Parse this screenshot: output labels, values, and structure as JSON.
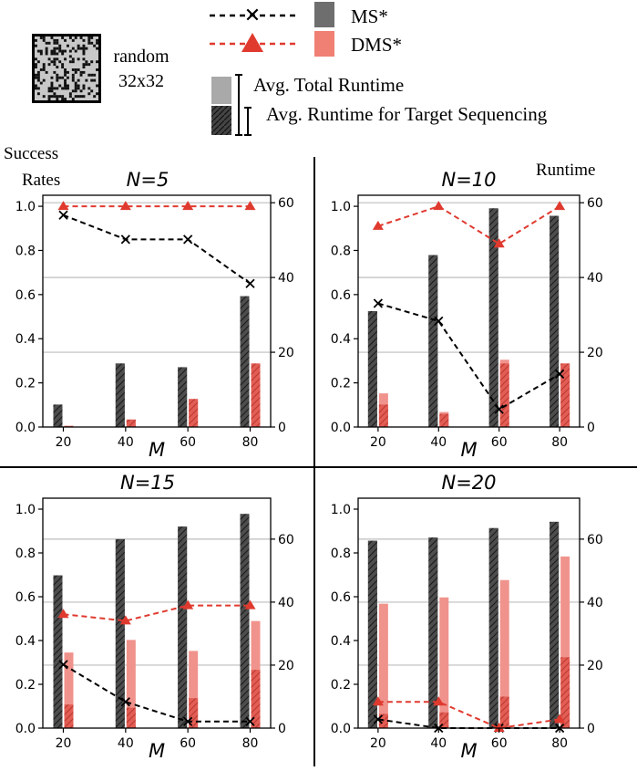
{
  "legend": {
    "map_label_line1": "random",
    "map_label_line2": "32x32",
    "ms_label": "MS*",
    "dms_label": "DMS*",
    "total_runtime_label": "Avg. Total Runtime",
    "target_seq_label": "Avg. Runtime for Target Sequencing"
  },
  "axis_text": {
    "left_title_line1": "Success",
    "left_title_line2": "Rates",
    "right_title": "Runtime",
    "x_label": "M"
  },
  "colors": {
    "ms_line": "#000000",
    "dms_line": "#e03a2f",
    "ms_bar": "#6e6e6e",
    "ms_bar_dark": "#4d4d4d",
    "dms_bar": "#f0938c",
    "dms_bar_dark": "#e35d54"
  },
  "chart_data": [
    {
      "type": "bar+line",
      "title": "N=5",
      "categories": [
        "20",
        "40",
        "60",
        "80"
      ],
      "y_left_ticks": [
        "0.0",
        "0.2",
        "0.4",
        "0.6",
        "0.8",
        "1.0"
      ],
      "y_right_ticks": [
        "0",
        "20",
        "40",
        "60"
      ],
      "ylim_left": [
        0,
        1.05
      ],
      "ylim_right": [
        0,
        62
      ],
      "success_rate": {
        "MS*": [
          0.96,
          0.85,
          0.85,
          0.65
        ],
        "DMS*": [
          1.0,
          1.0,
          1.0,
          1.0
        ]
      },
      "runtime_total": {
        "MS*": [
          6,
          17,
          16,
          35
        ],
        "DMS*": [
          0.3,
          2,
          7.5,
          17
        ]
      },
      "runtime_target_seq": {
        "MS*": [
          6,
          17,
          16,
          35
        ],
        "DMS*": [
          0.3,
          2,
          7.5,
          17
        ]
      }
    },
    {
      "type": "bar+line",
      "title": "N=10",
      "categories": [
        "20",
        "40",
        "60",
        "80"
      ],
      "y_left_ticks": [
        "0.0",
        "0.2",
        "0.4",
        "0.6",
        "0.8",
        "1.0"
      ],
      "y_right_ticks": [
        "0",
        "20",
        "40",
        "60"
      ],
      "ylim_left": [
        0,
        1.05
      ],
      "ylim_right": [
        0,
        62
      ],
      "success_rate": {
        "MS*": [
          0.56,
          0.48,
          0.08,
          0.24
        ],
        "DMS*": [
          0.91,
          1.0,
          0.83,
          1.0
        ]
      },
      "runtime_total": {
        "MS*": [
          31,
          46,
          58.5,
          56.5
        ],
        "DMS*": [
          9,
          4,
          18,
          17
        ]
      },
      "runtime_target_seq": {
        "MS*": [
          31,
          46,
          58.5,
          56.5
        ],
        "DMS*": [
          6,
          3.5,
          17,
          17
        ]
      }
    },
    {
      "type": "bar+line",
      "title": "N=15",
      "categories": [
        "20",
        "40",
        "60",
        "80"
      ],
      "y_left_ticks": [
        "0.0",
        "0.2",
        "0.4",
        "0.6",
        "0.8",
        "1.0"
      ],
      "y_right_ticks": [
        "0",
        "20",
        "40",
        "60"
      ],
      "ylim_left": [
        0,
        1.05
      ],
      "ylim_right": [
        0,
        73
      ],
      "success_rate": {
        "MS*": [
          0.29,
          0.12,
          0.03,
          0.03
        ],
        "DMS*": [
          0.52,
          0.49,
          0.56,
          0.56
        ]
      },
      "runtime_total": {
        "MS*": [
          48.5,
          60,
          64,
          68
        ],
        "DMS*": [
          24,
          28,
          24.5,
          34
        ]
      },
      "runtime_target_seq": {
        "MS*": [
          48.5,
          60,
          64,
          68
        ],
        "DMS*": [
          7.5,
          6.5,
          9.5,
          18.5
        ]
      }
    },
    {
      "type": "bar+line",
      "title": "N=20",
      "categories": [
        "20",
        "40",
        "60",
        "80"
      ],
      "y_left_ticks": [
        "0.0",
        "0.2",
        "0.4",
        "0.6",
        "0.8",
        "1.0"
      ],
      "y_right_ticks": [
        "0",
        "20",
        "40",
        "60"
      ],
      "ylim_left": [
        0,
        1.05
      ],
      "ylim_right": [
        0,
        73
      ],
      "success_rate": {
        "MS*": [
          0.04,
          0.0,
          0.0,
          0.0
        ],
        "DMS*": [
          0.12,
          0.12,
          0.0,
          0.04
        ]
      },
      "runtime_total": {
        "MS*": [
          59.5,
          60.5,
          63.5,
          65.5
        ],
        "DMS*": [
          39.5,
          41.5,
          47,
          54.5
        ]
      },
      "runtime_target_seq": {
        "MS*": [
          59.5,
          60.5,
          63.5,
          65.5
        ],
        "DMS*": [
          4.5,
          5,
          10,
          22.5
        ]
      }
    }
  ]
}
